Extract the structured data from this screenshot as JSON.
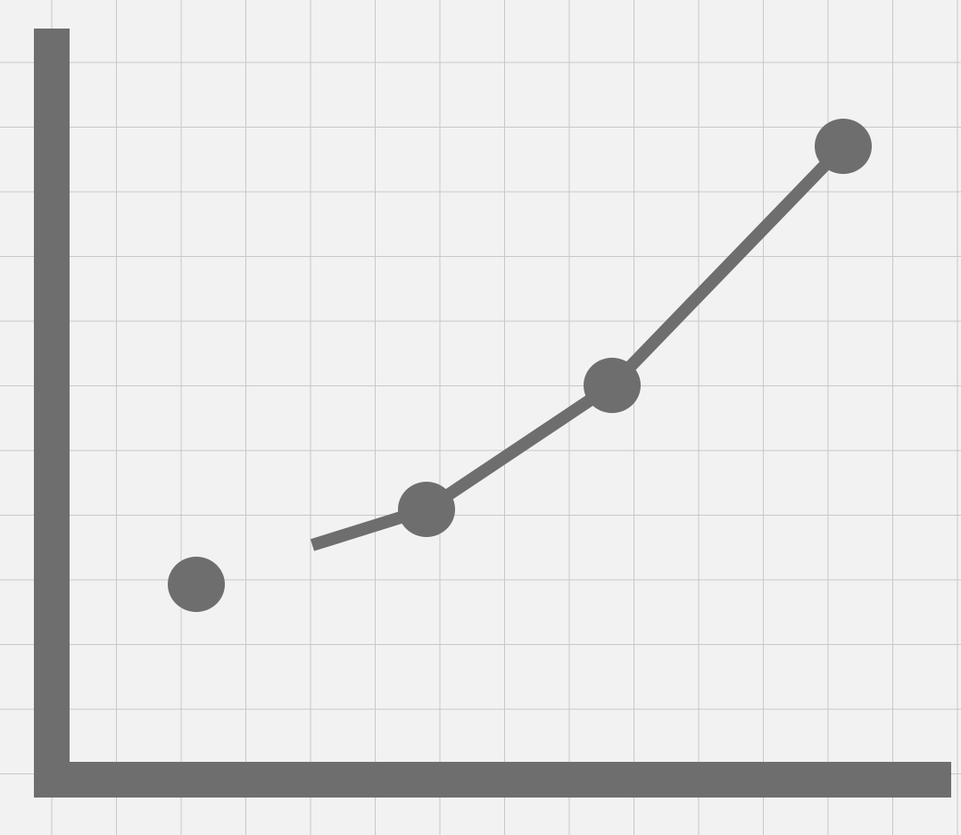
{
  "chart_data": {
    "type": "line",
    "title": "",
    "xlabel": "",
    "ylabel": "",
    "grid": true,
    "xlim": [
      0,
      10
    ],
    "ylim": [
      0,
      10
    ],
    "series": [
      {
        "color": "#6d6e6d",
        "x": [
          2.2,
          5.8,
          8.7,
          12.3
        ],
        "y": [
          3.0,
          4.2,
          6.1,
          9.8
        ],
        "line_start": [
          4.0,
          3.7
        ]
      }
    ]
  },
  "colors": {
    "background": "#f2f2f2",
    "grid": "#c8c8c8",
    "ink": "#6d6e6d"
  }
}
